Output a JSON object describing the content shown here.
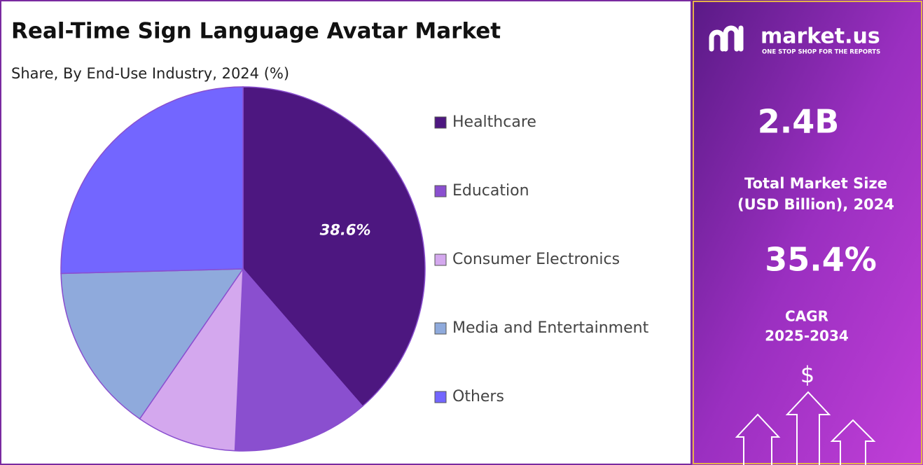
{
  "chart_data": {
    "type": "pie",
    "title": "Real-Time Sign Language Avatar Market",
    "subtitle": "Share, By End-Use Industry, 2024 (%)",
    "categories": [
      "Healthcare",
      "Education",
      "Consumer Electronics",
      "Media and Entertainment",
      "Others"
    ],
    "values": [
      38.6,
      12.1,
      8.9,
      15.0,
      25.4
    ],
    "value_labels": [
      "38.6%",
      null,
      null,
      null,
      null
    ],
    "colors": [
      "#4d1780",
      "#8a4fcf",
      "#d4a8ee",
      "#8faadc",
      "#7366ff"
    ],
    "legend": "right"
  },
  "side_panel": {
    "brand": "market.us",
    "tagline": "ONE STOP SHOP FOR THE REPORTS",
    "market_size": "2.4B",
    "market_size_label": [
      "Total Market Size",
      "(USD Billion), 2024"
    ],
    "cagr": "35.4%",
    "cagr_label": [
      "CAGR",
      "2025-2034"
    ],
    "icon": "$"
  }
}
